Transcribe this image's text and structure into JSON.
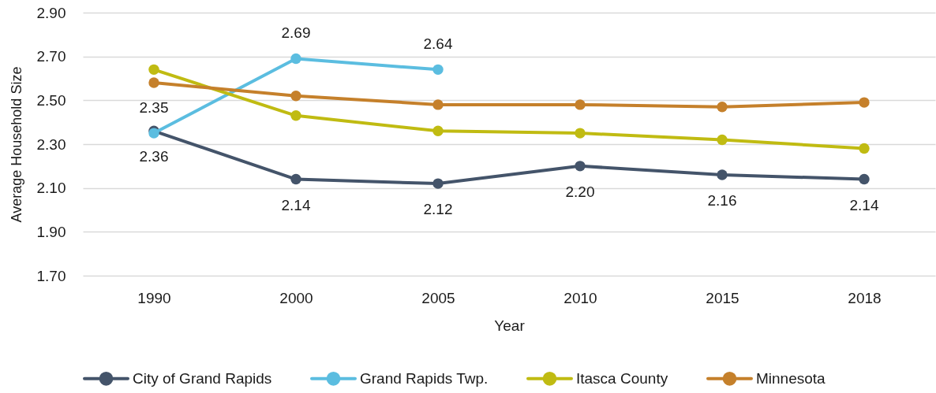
{
  "chart_data": {
    "type": "line",
    "xlabel": "Year",
    "ylabel": "Average Household Size",
    "categories": [
      "1990",
      "2000",
      "2005",
      "2010",
      "2015",
      "2018"
    ],
    "series": [
      {
        "name": "City of Grand Rapids",
        "color": "#44546a",
        "values": [
          2.36,
          2.14,
          2.12,
          2.2,
          2.16,
          2.14
        ],
        "value_labels": [
          "2.36",
          "2.14",
          "2.12",
          "2.20",
          "2.16",
          "2.14"
        ]
      },
      {
        "name": "Grand Rapids Twp.",
        "color": "#5bbde0",
        "values": [
          2.35,
          2.69,
          2.64,
          null,
          null,
          null
        ],
        "value_labels": [
          "2.35",
          "2.69",
          "2.64",
          null,
          null,
          null
        ]
      },
      {
        "name": "Itasca County",
        "color": "#c0bb12",
        "values": [
          2.64,
          2.43,
          2.36,
          2.35,
          2.32,
          2.28
        ]
      },
      {
        "name": "Minnesota",
        "color": "#c5802b",
        "values": [
          2.58,
          2.52,
          2.48,
          2.48,
          2.47,
          2.49
        ]
      }
    ],
    "ylim": [
      1.7,
      2.9
    ],
    "yticks": [
      {
        "value": 1.7,
        "label": "1.70"
      },
      {
        "value": 1.9,
        "label": "1.90"
      },
      {
        "value": 2.1,
        "label": "2.10"
      },
      {
        "value": 2.3,
        "label": "2.30"
      },
      {
        "value": 2.5,
        "label": "2.50"
      },
      {
        "value": 2.7,
        "label": "2.70"
      },
      {
        "value": 2.9,
        "label": "2.90"
      }
    ],
    "grid": "y",
    "legend": "bottom",
    "marker": "circle",
    "line_style": "solid"
  }
}
